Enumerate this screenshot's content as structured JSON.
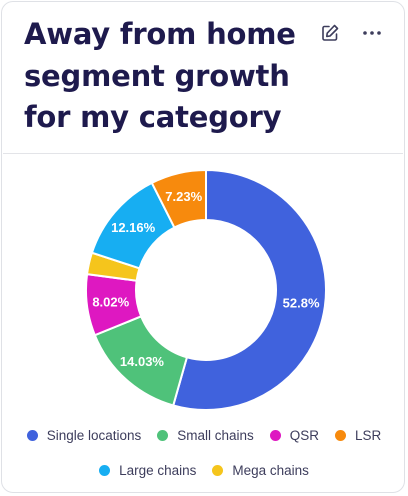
{
  "card": {
    "title_lines": [
      "Away from home",
      "segment growth",
      "for my category"
    ],
    "edit_icon": "pencil-icon",
    "more_icon": "more-horizontal-icon"
  },
  "chart_data": {
    "type": "pie",
    "variant": "donut",
    "legend_position": "bottom",
    "series": [
      {
        "name": "Single locations",
        "value": 52.8,
        "label": "52.8%",
        "color": "#4062dd"
      },
      {
        "name": "Small chains",
        "value": 14.03,
        "label": "14.03%",
        "color": "#4fc27a"
      },
      {
        "name": "QSR",
        "value": 8.02,
        "label": "8.02%",
        "color": "#de18c1"
      },
      {
        "name": "Mega chains",
        "value": 2.82,
        "label": "",
        "color": "#f5c51c"
      },
      {
        "name": "Large chains",
        "value": 12.16,
        "label": "12.16%",
        "color": "#17aef2"
      },
      {
        "name": "LSR",
        "value": 7.23,
        "label": "7.23%",
        "color": "#f78a0d"
      }
    ],
    "legend_order": [
      "Single locations",
      "Small chains",
      "QSR",
      "LSR",
      "Large chains",
      "Mega chains"
    ]
  }
}
